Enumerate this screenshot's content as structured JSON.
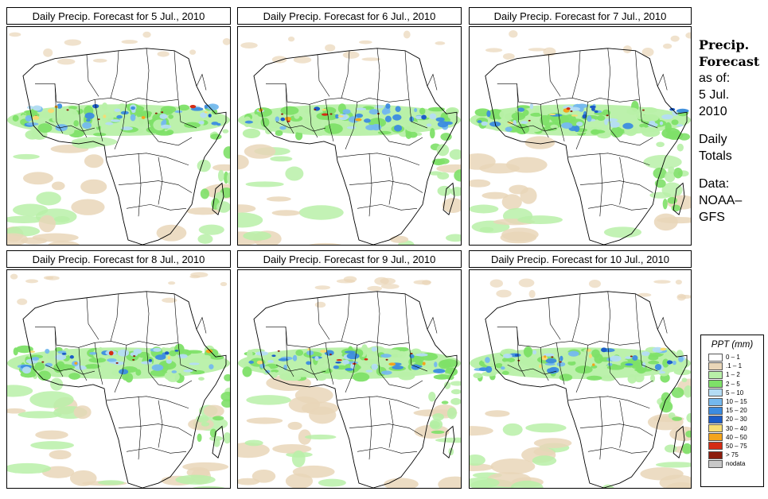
{
  "panels": [
    {
      "title": "Daily Precip. Forecast for  5 Jul., 2010"
    },
    {
      "title": "Daily Precip. Forecast for  6 Jul., 2010"
    },
    {
      "title": "Daily Precip. Forecast for  7 Jul., 2010"
    },
    {
      "title": "Daily Precip. Forecast for  8 Jul., 2010"
    },
    {
      "title": "Daily Precip. Forecast for  9 Jul., 2010"
    },
    {
      "title": "Daily Precip. Forecast for  10 Jul., 2010"
    }
  ],
  "side": {
    "title1": "Precip.",
    "title2": "Forecast",
    "as_of": "as of:",
    "date1": "5 Jul.",
    "date2": "2010",
    "daily": "Daily",
    "totals": "Totals",
    "data_label": "Data:",
    "source1": "NOAA–",
    "source2": "GFS"
  },
  "legend": {
    "title": "PPT (mm)",
    "items": [
      {
        "label": "0 – 1",
        "color": "#ffffff"
      },
      {
        "label": ".1 – 1",
        "color": "#e9d6b8"
      },
      {
        "label": "1 – 2",
        "color": "#b8f0a8"
      },
      {
        "label": "2 – 5",
        "color": "#7ee068"
      },
      {
        "label": "5 – 10",
        "color": "#b4dcf4"
      },
      {
        "label": "10 – 15",
        "color": "#74b8ee"
      },
      {
        "label": "15 – 20",
        "color": "#3c8ce0"
      },
      {
        "label": "20 – 30",
        "color": "#1c5cc8"
      },
      {
        "label": "30 – 40",
        "color": "#f6dc74"
      },
      {
        "label": "40 – 50",
        "color": "#f4a41c"
      },
      {
        "label": "50 – 75",
        "color": "#d42c14"
      },
      {
        "label": "> 75",
        "color": "#8c1c0c"
      },
      {
        "label": "nodata",
        "color": "#c8c8c8"
      }
    ]
  }
}
